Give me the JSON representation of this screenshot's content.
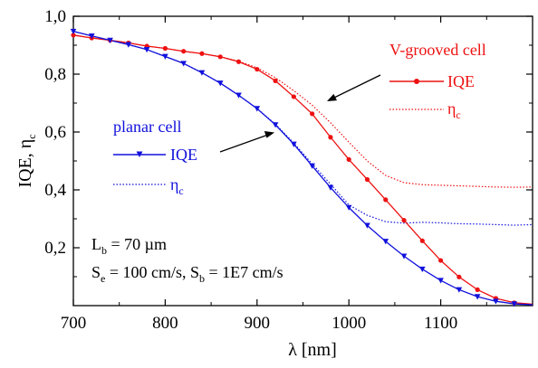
{
  "chart_data": {
    "type": "line",
    "xlabel": "λ [nm]",
    "ylabel": {
      "main": "IQE, η",
      "sub": "c"
    },
    "xlim": [
      700,
      1200
    ],
    "ylim": [
      0.0,
      1.0
    ],
    "xticks": [
      700,
      800,
      900,
      1000,
      1100
    ],
    "yticks": [
      0.2,
      0.4,
      0.6,
      0.8,
      1.0
    ],
    "xtick_labels": [
      "700",
      "800",
      "900",
      "1000",
      "1100"
    ],
    "ytick_labels": [
      "0,2",
      "0,4",
      "0,6",
      "0,8",
      "1,0"
    ],
    "colors": {
      "v_grooved": "#ee1111",
      "planar": "#1111dd",
      "axis": "#000000"
    },
    "series": [
      {
        "id": "vg_iqe",
        "group": "V-grooved cell",
        "name": "IQE",
        "color": "#ee1111",
        "style": "solid",
        "marker": "circle",
        "x": [
          700,
          720,
          740,
          760,
          780,
          800,
          820,
          840,
          860,
          880,
          900,
          920,
          940,
          960,
          980,
          1000,
          1020,
          1040,
          1060,
          1080,
          1100,
          1120,
          1140,
          1160,
          1180,
          1200
        ],
        "y": [
          0.935,
          0.925,
          0.917,
          0.908,
          0.897,
          0.889,
          0.879,
          0.871,
          0.86,
          0.843,
          0.817,
          0.777,
          0.722,
          0.663,
          0.582,
          0.505,
          0.436,
          0.366,
          0.295,
          0.224,
          0.156,
          0.099,
          0.055,
          0.025,
          0.01,
          0.005
        ]
      },
      {
        "id": "vg_eta",
        "group": "V-grooved cell",
        "name": "η",
        "name_sub": "c",
        "color": "#ee1111",
        "style": "dotted",
        "marker": "none",
        "x": [
          700,
          720,
          740,
          760,
          780,
          800,
          820,
          840,
          860,
          880,
          900,
          920,
          940,
          960,
          980,
          1000,
          1020,
          1040,
          1060,
          1080,
          1100,
          1120,
          1140,
          1160,
          1180,
          1200
        ],
        "y": [
          0.935,
          0.925,
          0.917,
          0.908,
          0.897,
          0.889,
          0.879,
          0.871,
          0.86,
          0.845,
          0.822,
          0.788,
          0.743,
          0.693,
          0.632,
          0.565,
          0.5,
          0.45,
          0.425,
          0.418,
          0.416,
          0.414,
          0.412,
          0.41,
          0.409,
          0.41
        ]
      },
      {
        "id": "pl_iqe",
        "group": "planar cell",
        "name": "IQE",
        "color": "#1111dd",
        "style": "solid",
        "marker": "triangle-down",
        "x": [
          700,
          720,
          740,
          760,
          780,
          800,
          820,
          840,
          860,
          880,
          900,
          920,
          940,
          960,
          980,
          1000,
          1020,
          1040,
          1060,
          1080,
          1100,
          1120,
          1140,
          1160,
          1180,
          1200
        ],
        "y": [
          0.948,
          0.932,
          0.917,
          0.902,
          0.885,
          0.861,
          0.837,
          0.805,
          0.769,
          0.727,
          0.681,
          0.625,
          0.558,
          0.483,
          0.408,
          0.339,
          0.277,
          0.222,
          0.171,
          0.126,
          0.087,
          0.055,
          0.031,
          0.015,
          0.006,
          0.003
        ]
      },
      {
        "id": "pl_eta",
        "group": "planar cell",
        "name": "η",
        "name_sub": "c",
        "color": "#1111dd",
        "style": "dotted",
        "marker": "none",
        "x": [
          700,
          720,
          740,
          760,
          780,
          800,
          820,
          840,
          860,
          880,
          900,
          920,
          940,
          960,
          980,
          1000,
          1020,
          1040,
          1060,
          1080,
          1100,
          1120,
          1140,
          1160,
          1180,
          1200
        ],
        "y": [
          0.948,
          0.932,
          0.917,
          0.902,
          0.885,
          0.861,
          0.837,
          0.805,
          0.769,
          0.727,
          0.681,
          0.627,
          0.562,
          0.49,
          0.42,
          0.348,
          0.312,
          0.29,
          0.285,
          0.288,
          0.286,
          0.283,
          0.282,
          0.28,
          0.278,
          0.28
        ]
      }
    ],
    "legend": {
      "v_grooved": {
        "title": "V-grooved cell",
        "iqe": "IQE",
        "eta": "η",
        "eta_sub": "c"
      },
      "planar": {
        "title": "planar cell",
        "iqe": "IQE",
        "eta": "η",
        "eta_sub": "c"
      }
    },
    "annotations": {
      "line1": {
        "a": "L",
        "a_sub": "b",
        "b": " = 70 µm"
      },
      "line2": {
        "a": "S",
        "a_sub": "e",
        "b": " = 100 cm/s, S",
        "b_sub": "b",
        "c": " = 1E7 cm/s"
      }
    },
    "grid": false
  }
}
